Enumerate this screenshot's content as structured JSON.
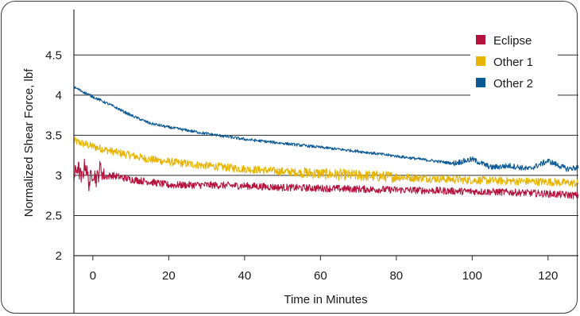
{
  "chart_data": {
    "type": "line",
    "title": "",
    "xlabel": "Time in Minutes",
    "ylabel": "Normalized Shear Force, lbf",
    "xlim": [
      -5,
      128
    ],
    "ylim": [
      2,
      4.75
    ],
    "x_ticks": [
      0,
      20,
      40,
      60,
      80,
      100,
      120
    ],
    "y_ticks": [
      2,
      2.5,
      3,
      3.5,
      4,
      4.5
    ],
    "x_tick_labels": [
      "0",
      "20",
      "40",
      "60",
      "80",
      "100",
      "120"
    ],
    "y_tick_labels": [
      "2",
      "2.5",
      "3",
      "3.5",
      "4",
      "4.5"
    ],
    "grid": "horizontal",
    "legend_position": "top-right",
    "series": [
      {
        "name": "Eclipse",
        "color": "#b5123e",
        "noise": 0.045,
        "x": [
          -5,
          -4,
          -3,
          -2,
          -1,
          0,
          1,
          2,
          3,
          5,
          10,
          15,
          20,
          30,
          40,
          50,
          60,
          70,
          80,
          90,
          100,
          110,
          120,
          128
        ],
        "y": [
          2.97,
          3.12,
          2.95,
          3.15,
          2.9,
          3.05,
          2.95,
          3.1,
          2.98,
          3.0,
          2.95,
          2.92,
          2.88,
          2.88,
          2.87,
          2.85,
          2.84,
          2.83,
          2.82,
          2.81,
          2.8,
          2.79,
          2.77,
          2.75
        ]
      },
      {
        "name": "Other 1",
        "color": "#e8b400",
        "noise": 0.05,
        "x": [
          -5,
          0,
          5,
          10,
          15,
          20,
          30,
          40,
          50,
          60,
          70,
          80,
          90,
          100,
          110,
          120,
          128
        ],
        "y": [
          3.43,
          3.36,
          3.3,
          3.25,
          3.2,
          3.17,
          3.12,
          3.08,
          3.05,
          3.02,
          3.0,
          2.98,
          2.96,
          2.94,
          2.93,
          2.92,
          2.9
        ]
      },
      {
        "name": "Other 2",
        "color": "#0b5a96",
        "noise": 0.018,
        "x": [
          -5,
          0,
          5,
          10,
          15,
          20,
          30,
          40,
          50,
          60,
          70,
          80,
          90,
          95,
          100,
          105,
          110,
          115,
          120,
          125,
          128
        ],
        "y": [
          4.1,
          3.98,
          3.87,
          3.75,
          3.65,
          3.6,
          3.52,
          3.45,
          3.4,
          3.35,
          3.3,
          3.24,
          3.18,
          3.15,
          3.2,
          3.1,
          3.12,
          3.08,
          3.18,
          3.08,
          3.1
        ]
      }
    ]
  }
}
